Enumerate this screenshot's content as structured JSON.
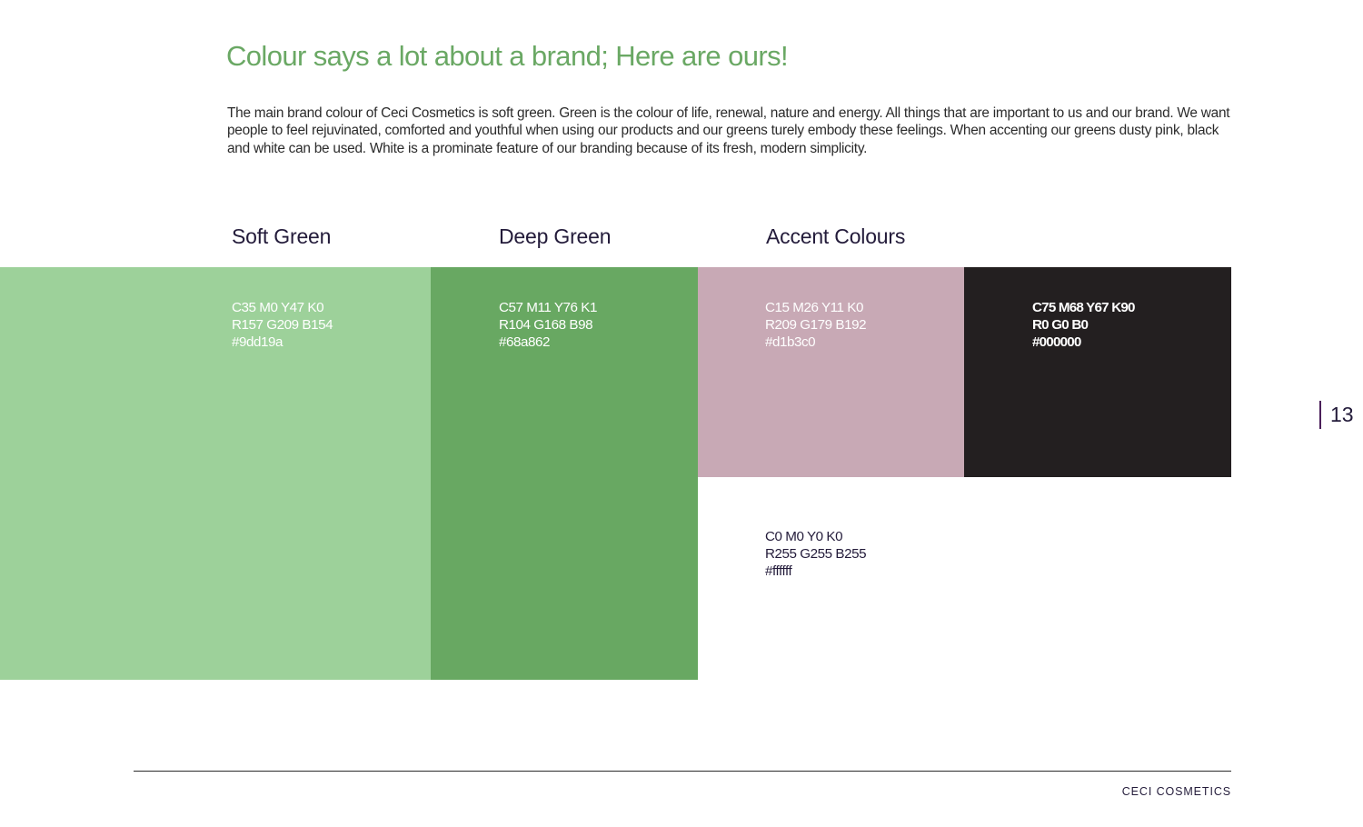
{
  "page": {
    "heading": "Colour says a lot about a brand; Here are ours!",
    "intro": "The main brand colour of Ceci Cosmetics is soft green. Green is the colour of life, renewal, nature and energy. All things that are important to us and our brand. We want people to feel rejuvinated, comforted and youthful when using our products and our greens turely embody these feelings. When accenting our greens dusty pink, black and white can be used. White is a prominate feature of our branding because of its fresh, modern simplicity.",
    "page_number": "13",
    "footer_brand": "CECI COSMETICS"
  },
  "sections": {
    "soft_green": "Soft Green",
    "deep_green": "Deep Green",
    "accent": "Accent Colours"
  },
  "swatches": {
    "soft_green": {
      "cmyk": "C35 M0 Y47 K0",
      "rgb": "R157 G209 B154",
      "hex": "#9dd19a",
      "color": "#9dd19a",
      "text_color": "#ffffff"
    },
    "deep_green": {
      "cmyk": "C57 M11 Y76 K1",
      "rgb": "R104 G168 B98",
      "hex": "#68a862",
      "color": "#68a862",
      "text_color": "#ffffff"
    },
    "dusty_pink": {
      "cmyk": "C15 M26 Y11 K0",
      "rgb": "R209 G179 B192",
      "hex": "#d1b3c0",
      "color": "#c8a9b5",
      "text_color": "#ffffff"
    },
    "black": {
      "cmyk": "C75 M68 Y67 K90",
      "rgb": "R0 G0 B0",
      "hex": "#000000",
      "color": "#231f20",
      "text_color": "#ffffff"
    },
    "white": {
      "cmyk": "C0 M0 Y0 K0",
      "rgb": "R255 G255 B255",
      "hex": "#ffffff",
      "color": "#ffffff",
      "text_color": "#231b3a"
    }
  },
  "colors": {
    "heading": "#6aa864",
    "text": "#2b2b2b",
    "title": "#231b3a",
    "page_marker": "#4b1f5a"
  }
}
